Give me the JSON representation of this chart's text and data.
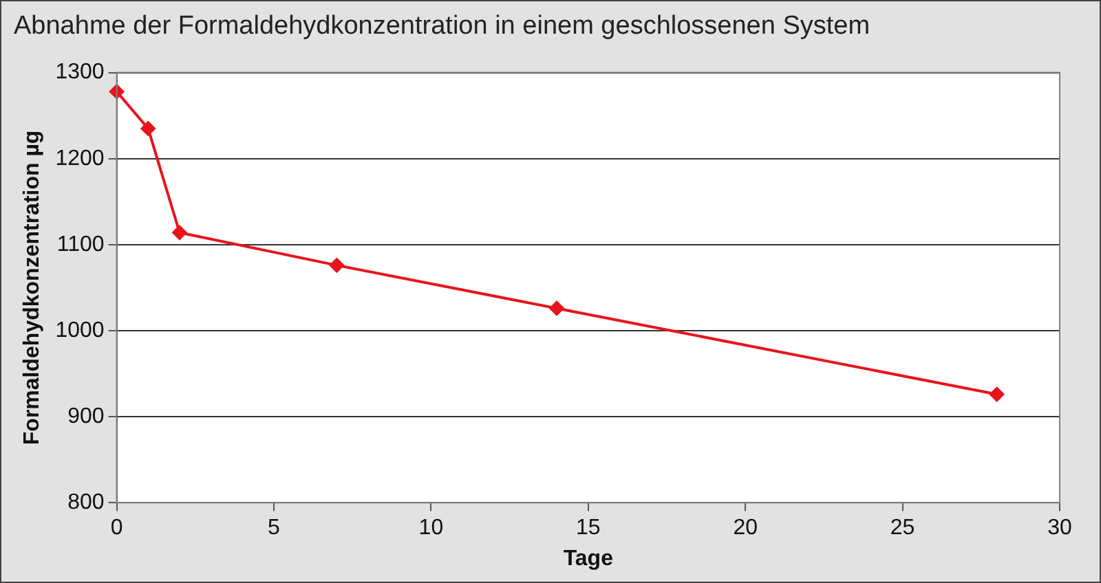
{
  "chart_data": {
    "type": "line",
    "title": "Abnahme der Formaldehydkonzentration in einem geschlossenen System",
    "xlabel": "Tage",
    "ylabel": "Formaldehydkonzentration µg",
    "x": [
      0,
      1,
      2,
      7,
      14,
      28
    ],
    "series": [
      {
        "color": "#e8141c",
        "values": [
          1278,
          1235,
          1114,
          1076,
          1026,
          926
        ]
      }
    ],
    "xlim": [
      0,
      30
    ],
    "xticks": [
      0,
      5,
      10,
      15,
      20,
      25,
      30
    ],
    "ylim": [
      800,
      1300
    ],
    "yticks": [
      800,
      900,
      1000,
      1100,
      1200,
      1300
    ],
    "grid": "y",
    "legend": false,
    "marker": "diamond",
    "line_style": "solid"
  }
}
